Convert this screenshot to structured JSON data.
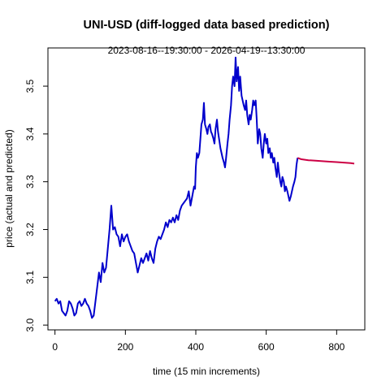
{
  "chart_data": {
    "type": "line",
    "title": "UNI-USD (diff-logged data based prediction)",
    "subtitle": "2023-08-16--19:30:00  -  2026-04-19--13:30:00",
    "xlabel": "time (15 min increments)",
    "ylabel": "price (actual and predicted)",
    "xlim": [
      -20,
      880
    ],
    "ylim": [
      2.99,
      3.58
    ],
    "x_ticks": [
      0,
      200,
      400,
      600,
      800
    ],
    "y_ticks": [
      3.0,
      3.1,
      3.2,
      3.3,
      3.4,
      3.5
    ],
    "x_tick_labels": [
      "0",
      "200",
      "400",
      "600",
      "800"
    ],
    "y_tick_labels": [
      "3.0",
      "3.1",
      "3.2",
      "3.3",
      "3.4",
      "3.5"
    ],
    "grid": false,
    "series": [
      {
        "color": "#0000cc",
        "points": [
          [
            0,
            3.05
          ],
          [
            5,
            3.055
          ],
          [
            10,
            3.045
          ],
          [
            15,
            3.05
          ],
          [
            20,
            3.03
          ],
          [
            25,
            3.025
          ],
          [
            30,
            3.02
          ],
          [
            35,
            3.03
          ],
          [
            40,
            3.05
          ],
          [
            45,
            3.045
          ],
          [
            50,
            3.035
          ],
          [
            55,
            3.02
          ],
          [
            60,
            3.025
          ],
          [
            65,
            3.045
          ],
          [
            70,
            3.05
          ],
          [
            75,
            3.04
          ],
          [
            80,
            3.045
          ],
          [
            85,
            3.055
          ],
          [
            90,
            3.045
          ],
          [
            95,
            3.04
          ],
          [
            100,
            3.03
          ],
          [
            105,
            3.015
          ],
          [
            110,
            3.02
          ],
          [
            115,
            3.05
          ],
          [
            120,
            3.08
          ],
          [
            125,
            3.11
          ],
          [
            130,
            3.09
          ],
          [
            135,
            3.13
          ],
          [
            140,
            3.11
          ],
          [
            145,
            3.12
          ],
          [
            150,
            3.16
          ],
          [
            155,
            3.2
          ],
          [
            160,
            3.25
          ],
          [
            165,
            3.2
          ],
          [
            170,
            3.205
          ],
          [
            175,
            3.19
          ],
          [
            180,
            3.185
          ],
          [
            185,
            3.165
          ],
          [
            190,
            3.19
          ],
          [
            195,
            3.175
          ],
          [
            200,
            3.185
          ],
          [
            205,
            3.19
          ],
          [
            210,
            3.175
          ],
          [
            215,
            3.165
          ],
          [
            220,
            3.155
          ],
          [
            225,
            3.15
          ],
          [
            230,
            3.13
          ],
          [
            235,
            3.11
          ],
          [
            240,
            3.125
          ],
          [
            245,
            3.14
          ],
          [
            250,
            3.13
          ],
          [
            255,
            3.14
          ],
          [
            260,
            3.15
          ],
          [
            265,
            3.135
          ],
          [
            270,
            3.155
          ],
          [
            275,
            3.14
          ],
          [
            280,
            3.13
          ],
          [
            285,
            3.16
          ],
          [
            290,
            3.175
          ],
          [
            295,
            3.185
          ],
          [
            300,
            3.18
          ],
          [
            305,
            3.19
          ],
          [
            310,
            3.2
          ],
          [
            315,
            3.215
          ],
          [
            320,
            3.205
          ],
          [
            325,
            3.22
          ],
          [
            330,
            3.215
          ],
          [
            335,
            3.225
          ],
          [
            340,
            3.215
          ],
          [
            345,
            3.23
          ],
          [
            350,
            3.22
          ],
          [
            355,
            3.24
          ],
          [
            360,
            3.25
          ],
          [
            365,
            3.255
          ],
          [
            370,
            3.26
          ],
          [
            375,
            3.265
          ],
          [
            380,
            3.28
          ],
          [
            385,
            3.25
          ],
          [
            390,
            3.27
          ],
          [
            395,
            3.29
          ],
          [
            398,
            3.285
          ],
          [
            400,
            3.33
          ],
          [
            403,
            3.36
          ],
          [
            406,
            3.35
          ],
          [
            410,
            3.36
          ],
          [
            413,
            3.39
          ],
          [
            416,
            3.42
          ],
          [
            420,
            3.43
          ],
          [
            423,
            3.465
          ],
          [
            426,
            3.42
          ],
          [
            430,
            3.41
          ],
          [
            433,
            3.4
          ],
          [
            436,
            3.415
          ],
          [
            440,
            3.42
          ],
          [
            443,
            3.405
          ],
          [
            446,
            3.4
          ],
          [
            450,
            3.39
          ],
          [
            453,
            3.38
          ],
          [
            456,
            3.41
          ],
          [
            460,
            3.43
          ],
          [
            463,
            3.405
          ],
          [
            466,
            3.39
          ],
          [
            470,
            3.37
          ],
          [
            473,
            3.36
          ],
          [
            476,
            3.35
          ],
          [
            480,
            3.34
          ],
          [
            483,
            3.33
          ],
          [
            486,
            3.35
          ],
          [
            490,
            3.38
          ],
          [
            493,
            3.4
          ],
          [
            496,
            3.43
          ],
          [
            500,
            3.46
          ],
          [
            503,
            3.5
          ],
          [
            506,
            3.52
          ],
          [
            510,
            3.5
          ],
          [
            513,
            3.56
          ],
          [
            516,
            3.51
          ],
          [
            520,
            3.54
          ],
          [
            523,
            3.49
          ],
          [
            526,
            3.52
          ],
          [
            530,
            3.48
          ],
          [
            533,
            3.47
          ],
          [
            536,
            3.46
          ],
          [
            540,
            3.45
          ],
          [
            543,
            3.47
          ],
          [
            546,
            3.44
          ],
          [
            550,
            3.42
          ],
          [
            553,
            3.44
          ],
          [
            556,
            3.43
          ],
          [
            560,
            3.45
          ],
          [
            563,
            3.47
          ],
          [
            566,
            3.46
          ],
          [
            570,
            3.47
          ],
          [
            573,
            3.43
          ],
          [
            576,
            3.38
          ],
          [
            580,
            3.41
          ],
          [
            583,
            3.4
          ],
          [
            586,
            3.37
          ],
          [
            590,
            3.35
          ],
          [
            593,
            3.38
          ],
          [
            596,
            3.4
          ],
          [
            600,
            3.38
          ],
          [
            603,
            3.39
          ],
          [
            606,
            3.36
          ],
          [
            610,
            3.37
          ],
          [
            613,
            3.35
          ],
          [
            616,
            3.36
          ],
          [
            620,
            3.34
          ],
          [
            623,
            3.35
          ],
          [
            626,
            3.33
          ],
          [
            630,
            3.31
          ],
          [
            633,
            3.34
          ],
          [
            636,
            3.32
          ],
          [
            640,
            3.3
          ],
          [
            643,
            3.29
          ],
          [
            646,
            3.31
          ],
          [
            650,
            3.3
          ],
          [
            653,
            3.28
          ],
          [
            656,
            3.29
          ],
          [
            660,
            3.28
          ],
          [
            663,
            3.27
          ],
          [
            666,
            3.26
          ],
          [
            670,
            3.27
          ],
          [
            673,
            3.28
          ],
          [
            676,
            3.29
          ],
          [
            680,
            3.3
          ],
          [
            683,
            3.31
          ],
          [
            686,
            3.335
          ],
          [
            689,
            3.35
          ]
        ]
      },
      {
        "color": "#cc0044",
        "points": [
          [
            689,
            3.35
          ],
          [
            700,
            3.347
          ],
          [
            720,
            3.345
          ],
          [
            740,
            3.344
          ],
          [
            760,
            3.343
          ],
          [
            780,
            3.342
          ],
          [
            800,
            3.341
          ],
          [
            820,
            3.34
          ],
          [
            840,
            3.339
          ],
          [
            850,
            3.338
          ]
        ]
      }
    ]
  }
}
